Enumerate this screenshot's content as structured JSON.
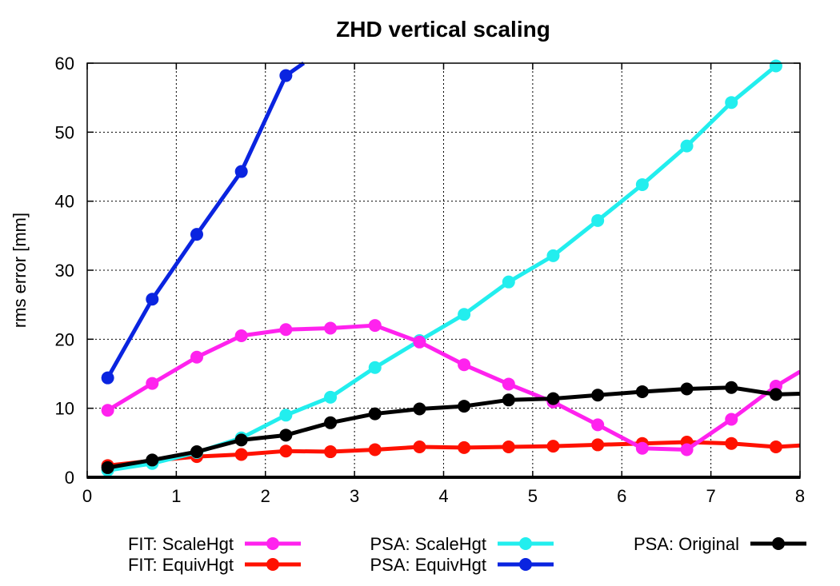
{
  "chart_data": {
    "type": "line",
    "title": "ZHD vertical scaling",
    "xlabel": "",
    "ylabel": "rms error [mm]",
    "xlim": [
      0,
      8
    ],
    "ylim": [
      0,
      60
    ],
    "xticks": [
      0,
      1,
      2,
      3,
      4,
      5,
      6,
      7,
      8
    ],
    "yticks": [
      0,
      10,
      20,
      30,
      40,
      50,
      60
    ],
    "xtick_labels": [
      "0",
      "1",
      "2",
      "3",
      "4",
      "5",
      "6",
      "7",
      "8"
    ],
    "ytick_labels": [
      "0",
      "10",
      "20",
      "30",
      "40",
      "50",
      "60"
    ],
    "grid": true,
    "legend_position": "bottom",
    "series": [
      {
        "name": "FIT: ScaleHgt",
        "color": "#ff22ee",
        "x": [
          0.23,
          0.73,
          1.23,
          1.73,
          2.23,
          2.73,
          3.23,
          3.73,
          4.23,
          4.73,
          5.23,
          5.73,
          6.23,
          6.73,
          7.23,
          7.73,
          8.0
        ],
        "y": [
          9.7,
          13.6,
          17.4,
          20.5,
          21.4,
          21.6,
          22.0,
          19.6,
          16.3,
          13.5,
          10.9,
          7.6,
          4.2,
          4.0,
          8.4,
          13.2,
          15.3
        ]
      },
      {
        "name": "FIT: EquivHgt",
        "color": "#ff1100",
        "x": [
          0.23,
          0.73,
          1.23,
          1.73,
          2.23,
          2.73,
          3.23,
          3.73,
          4.23,
          4.73,
          5.23,
          5.73,
          6.23,
          6.73,
          7.23,
          7.73,
          8.0
        ],
        "y": [
          1.7,
          2.4,
          3.0,
          3.3,
          3.8,
          3.7,
          4.0,
          4.4,
          4.3,
          4.4,
          4.5,
          4.7,
          4.9,
          5.1,
          4.9,
          4.4,
          4.6
        ]
      },
      {
        "name": "PSA: ScaleHgt",
        "color": "#22eeee",
        "x": [
          0.23,
          0.73,
          1.23,
          1.73,
          2.23,
          2.73,
          3.23,
          3.73,
          4.23,
          4.73,
          5.23,
          5.73,
          6.23,
          6.73,
          7.23,
          7.73
        ],
        "y": [
          1.0,
          2.0,
          3.6,
          5.7,
          9.0,
          11.6,
          15.9,
          19.8,
          23.6,
          28.3,
          32.1,
          37.2,
          42.4,
          48.0,
          54.3,
          59.6
        ]
      },
      {
        "name": "PSA: EquivHgt",
        "color": "#0a24e0",
        "x": [
          0.23,
          0.73,
          1.23,
          1.73,
          2.23,
          2.43
        ],
        "y": [
          14.4,
          25.8,
          35.2,
          44.3,
          58.2,
          60.0
        ],
        "marker_count": 5
      },
      {
        "name": "PSA: Original",
        "color": "#000000",
        "x": [
          0.23,
          0.73,
          1.23,
          1.73,
          2.23,
          2.73,
          3.23,
          3.73,
          4.23,
          4.73,
          5.23,
          5.73,
          6.23,
          6.73,
          7.23,
          7.73,
          8.0
        ],
        "y": [
          1.4,
          2.5,
          3.7,
          5.4,
          6.1,
          7.9,
          9.2,
          9.9,
          10.3,
          11.2,
          11.4,
          11.9,
          12.4,
          12.8,
          13.0,
          12.0,
          12.1
        ]
      }
    ]
  }
}
